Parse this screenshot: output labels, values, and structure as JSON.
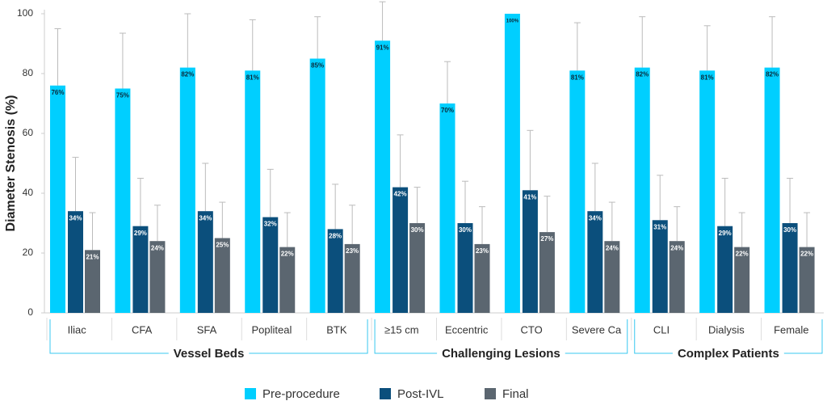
{
  "chart_data": {
    "type": "bar",
    "ylabel": "Diameter Stenosis (%)",
    "ylim": [
      0,
      100
    ],
    "yticks": [
      0,
      20,
      40,
      60,
      80,
      100
    ],
    "groups": [
      {
        "name": "Vessel Beds",
        "categories": [
          "Iliac",
          "CFA",
          "SFA",
          "Popliteal",
          "BTK"
        ]
      },
      {
        "name": "Challenging Lesions",
        "categories": [
          "≥15 cm",
          "Eccentric",
          "CTO",
          "Severe Ca"
        ]
      },
      {
        "name": "Complex Patients",
        "categories": [
          "CLI",
          "Dialysis",
          "Female"
        ]
      }
    ],
    "series": [
      {
        "name": "Pre-procedure",
        "color": "#00cfff",
        "values": [
          76,
          75,
          82,
          81,
          85,
          91,
          70,
          100,
          81,
          82,
          81,
          82
        ],
        "value_labels": [
          "76%",
          "75%",
          "82%",
          "81%",
          "85%",
          "91%",
          "70%",
          "100%",
          "81%",
          "82%",
          "81%",
          "82%"
        ],
        "errors": [
          19,
          18.5,
          18,
          17,
          14,
          13,
          14,
          null,
          16,
          17,
          15,
          17
        ]
      },
      {
        "name": "Post-IVL",
        "color": "#0b4f7c",
        "values": [
          34,
          29,
          34,
          32,
          28,
          42,
          30,
          41,
          34,
          31,
          29,
          30
        ],
        "value_labels": [
          "34%",
          "29%",
          "34%",
          "32%",
          "28%",
          "42%",
          "30%",
          "41%",
          "34%",
          "31%",
          "29%",
          "30%"
        ],
        "errors": [
          18,
          16,
          16,
          16,
          15,
          17.5,
          14,
          20,
          16,
          15,
          16,
          15
        ]
      },
      {
        "name": "Final",
        "color": "#5b6670",
        "values": [
          21,
          24,
          25,
          22,
          23,
          30,
          23,
          27,
          24,
          24,
          22,
          22
        ],
        "value_labels": [
          "21%",
          "24%",
          "25%",
          "22%",
          "23%",
          "30%",
          "23%",
          "27%",
          "24%",
          "24%",
          "22%",
          "22%"
        ],
        "errors": [
          12.5,
          12,
          12,
          11.5,
          13,
          12,
          12.5,
          12,
          13,
          11.5,
          11.5,
          11.5
        ]
      }
    ]
  }
}
